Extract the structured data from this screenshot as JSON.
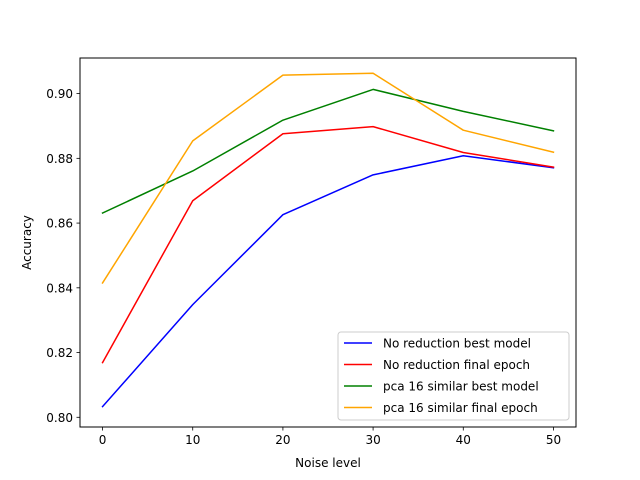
{
  "chart_data": {
    "type": "line",
    "title": "",
    "xlabel": "Noise level",
    "ylabel": "Accuracy",
    "x": [
      0,
      10,
      20,
      30,
      40,
      50
    ],
    "xlim": [
      -2.5,
      52.5
    ],
    "ylim": [
      0.797,
      0.911
    ],
    "xticks": [
      0,
      10,
      20,
      30,
      40,
      50
    ],
    "yticks": [
      0.8,
      0.82,
      0.84,
      0.86,
      0.88,
      0.9
    ],
    "ytick_labels": [
      "0.80",
      "0.82",
      "0.84",
      "0.86",
      "0.88",
      "0.90"
    ],
    "grid": false,
    "legend_position": "lower-right",
    "series": [
      {
        "name": "No reduction best model",
        "color": "#0000ff",
        "values": [
          0.8033,
          0.8348,
          0.8626,
          0.8749,
          0.8808,
          0.8771
        ]
      },
      {
        "name": "No reduction final epoch",
        "color": "#ff0000",
        "values": [
          0.8169,
          0.8669,
          0.8876,
          0.8898,
          0.8818,
          0.8773
        ]
      },
      {
        "name": "pca 16 similar best model",
        "color": "#008000",
        "values": [
          0.8631,
          0.8761,
          0.8918,
          0.9013,
          0.8945,
          0.8885
        ]
      },
      {
        "name": "pca 16 similar final epoch",
        "color": "#ffa500",
        "values": [
          0.8415,
          0.8854,
          0.9057,
          0.9063,
          0.8887,
          0.8819
        ]
      }
    ]
  }
}
